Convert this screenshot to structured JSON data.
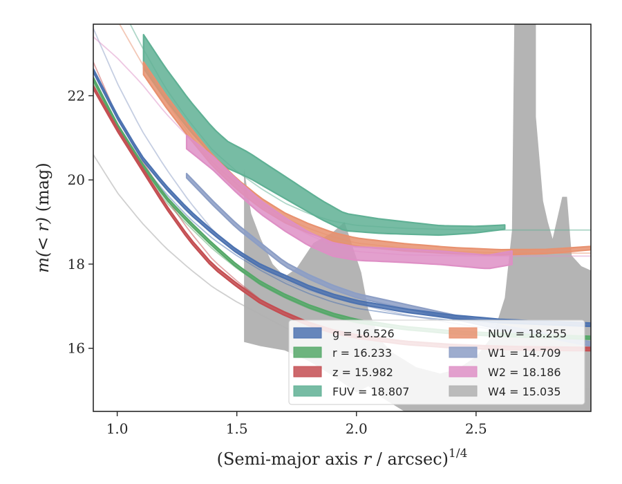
{
  "chart_data": {
    "type": "line",
    "title": "",
    "xlabel_main": "(Semi-major axis ",
    "xlabel_var": "r",
    "xlabel_rest": " / arcsec)",
    "xlabel_exp": "1/4",
    "ylabel_main": "m(< r)",
    "ylabel_unit": " (mag)",
    "xlim": [
      0.9,
      2.98
    ],
    "ylim": [
      23.7,
      14.5
    ],
    "y_inverted": true,
    "grid": false,
    "legend_position": "lower-right",
    "xticks": [
      1.0,
      1.5,
      2.0,
      2.5
    ],
    "xtick_labels": [
      "1.0",
      "1.5",
      "2.0",
      "2.5"
    ],
    "yticks": [
      16,
      18,
      20,
      22
    ],
    "ytick_labels": [
      "16",
      "18",
      "20",
      "22"
    ],
    "series": [
      {
        "key": "g",
        "legend_label": "g = 16.526",
        "color": "#4c72b0",
        "fit": [
          [
            0.9,
            22.45
          ],
          [
            1.0,
            21.3
          ],
          [
            1.1,
            20.4
          ],
          [
            1.2,
            19.7
          ],
          [
            1.3,
            19.1
          ],
          [
            1.4,
            18.6
          ],
          [
            1.5,
            18.2
          ],
          [
            1.6,
            17.85
          ],
          [
            1.7,
            17.55
          ],
          [
            1.8,
            17.3
          ],
          [
            1.9,
            17.1
          ],
          [
            2.0,
            16.95
          ],
          [
            2.2,
            16.78
          ],
          [
            2.4,
            16.66
          ],
          [
            2.6,
            16.6
          ],
          [
            2.8,
            16.56
          ],
          [
            2.98,
            16.54
          ]
        ],
        "profile": [
          [
            0.9,
            22.6
          ],
          [
            1.0,
            21.5
          ],
          [
            1.1,
            20.55
          ],
          [
            1.2,
            19.85
          ],
          [
            1.3,
            19.25
          ],
          [
            1.4,
            18.75
          ],
          [
            1.5,
            18.3
          ],
          [
            1.6,
            17.95
          ],
          [
            1.7,
            17.7
          ],
          [
            1.8,
            17.45
          ],
          [
            1.9,
            17.25
          ],
          [
            2.0,
            17.1
          ],
          [
            2.2,
            16.9
          ],
          [
            2.4,
            16.75
          ],
          [
            2.6,
            16.65
          ],
          [
            2.8,
            16.6
          ],
          [
            2.98,
            16.56
          ]
        ],
        "halfwidth": 0.04
      },
      {
        "key": "r",
        "legend_label": "r = 16.233",
        "color": "#55a868",
        "fit": [
          [
            0.9,
            22.3
          ],
          [
            1.0,
            21.2
          ],
          [
            1.1,
            20.3
          ],
          [
            1.2,
            19.5
          ],
          [
            1.3,
            18.9
          ],
          [
            1.4,
            18.35
          ],
          [
            1.5,
            17.9
          ],
          [
            1.6,
            17.5
          ],
          [
            1.7,
            17.2
          ],
          [
            1.8,
            16.95
          ],
          [
            1.9,
            16.75
          ],
          [
            2.0,
            16.6
          ],
          [
            2.2,
            16.45
          ],
          [
            2.4,
            16.35
          ],
          [
            2.6,
            16.3
          ],
          [
            2.8,
            16.26
          ],
          [
            2.98,
            16.25
          ]
        ],
        "profile": [
          [
            0.9,
            22.4
          ],
          [
            1.0,
            21.3
          ],
          [
            1.1,
            20.4
          ],
          [
            1.2,
            19.6
          ],
          [
            1.3,
            19.0
          ],
          [
            1.4,
            18.45
          ],
          [
            1.5,
            17.95
          ],
          [
            1.6,
            17.55
          ],
          [
            1.7,
            17.25
          ],
          [
            1.8,
            17.0
          ],
          [
            1.9,
            16.8
          ],
          [
            2.0,
            16.65
          ],
          [
            2.2,
            16.48
          ],
          [
            2.4,
            16.38
          ],
          [
            2.6,
            16.32
          ],
          [
            2.8,
            16.28
          ],
          [
            2.98,
            16.25
          ]
        ],
        "halfwidth": 0.035
      },
      {
        "key": "z",
        "legend_label": "z = 15.982",
        "color": "#c44e52",
        "fit": [
          [
            0.9,
            22.8
          ],
          [
            1.0,
            21.5
          ],
          [
            1.1,
            20.5
          ],
          [
            1.2,
            19.6
          ],
          [
            1.3,
            18.8
          ],
          [
            1.4,
            18.1
          ],
          [
            1.5,
            17.6
          ],
          [
            1.6,
            17.15
          ],
          [
            1.7,
            16.85
          ],
          [
            1.8,
            16.6
          ],
          [
            1.9,
            16.42
          ],
          [
            2.0,
            16.3
          ],
          [
            2.2,
            16.15
          ],
          [
            2.4,
            16.07
          ],
          [
            2.6,
            16.03
          ],
          [
            2.8,
            16.0
          ],
          [
            2.98,
            15.99
          ]
        ],
        "profile": [
          [
            0.9,
            22.2
          ],
          [
            1.0,
            21.2
          ],
          [
            1.1,
            20.3
          ],
          [
            1.2,
            19.4
          ],
          [
            1.3,
            18.6
          ],
          [
            1.4,
            17.95
          ],
          [
            1.5,
            17.5
          ],
          [
            1.6,
            17.1
          ],
          [
            1.7,
            16.82
          ],
          [
            1.8,
            16.58
          ],
          [
            1.9,
            16.4
          ],
          [
            2.0,
            16.28
          ],
          [
            2.2,
            16.13
          ],
          [
            2.4,
            16.05
          ],
          [
            2.6,
            16.01
          ],
          [
            2.8,
            15.99
          ],
          [
            2.98,
            15.98
          ]
        ],
        "halfwidth": 0.04
      },
      {
        "key": "FUV",
        "legend_label": "FUV = 18.807",
        "color": "#5fb094",
        "fit": [
          [
            0.9,
            25.5
          ],
          [
            1.0,
            24.3
          ],
          [
            1.1,
            23.2
          ],
          [
            1.2,
            22.2
          ],
          [
            1.3,
            21.4
          ],
          [
            1.4,
            20.7
          ],
          [
            1.5,
            20.2
          ],
          [
            1.6,
            19.8
          ],
          [
            1.7,
            19.45
          ],
          [
            1.8,
            19.2
          ],
          [
            1.9,
            19.02
          ],
          [
            2.0,
            18.92
          ],
          [
            2.2,
            18.85
          ],
          [
            2.4,
            18.82
          ],
          [
            2.6,
            18.81
          ],
          [
            2.8,
            18.81
          ],
          [
            2.98,
            18.81
          ]
        ],
        "profile": [
          [
            1.11,
            23.05
          ],
          [
            1.2,
            22.3
          ],
          [
            1.3,
            21.55
          ],
          [
            1.4,
            20.9
          ],
          [
            1.46,
            20.6
          ],
          [
            1.55,
            20.35
          ],
          [
            1.65,
            20.0
          ],
          [
            1.75,
            19.65
          ],
          [
            1.85,
            19.3
          ],
          [
            1.95,
            19.0
          ],
          [
            2.1,
            18.9
          ],
          [
            2.35,
            18.8
          ],
          [
            2.5,
            18.82
          ],
          [
            2.62,
            18.88
          ]
        ],
        "halfwidth_start": 0.4,
        "halfwidth_end": 0.05
      },
      {
        "key": "NUV",
        "legend_label": "NUV = 18.255",
        "color": "#e8916f",
        "fit": [
          [
            0.9,
            25.0
          ],
          [
            1.0,
            23.8
          ],
          [
            1.1,
            22.8
          ],
          [
            1.2,
            21.9
          ],
          [
            1.3,
            21.1
          ],
          [
            1.4,
            20.4
          ],
          [
            1.5,
            19.9
          ],
          [
            1.6,
            19.45
          ],
          [
            1.7,
            19.1
          ],
          [
            1.8,
            18.85
          ],
          [
            1.9,
            18.65
          ],
          [
            2.0,
            18.5
          ],
          [
            2.2,
            18.38
          ],
          [
            2.4,
            18.3
          ],
          [
            2.6,
            18.27
          ],
          [
            2.8,
            18.26
          ],
          [
            2.98,
            18.26
          ]
        ],
        "profile": [
          [
            1.11,
            22.65
          ],
          [
            1.2,
            21.9
          ],
          [
            1.3,
            21.15
          ],
          [
            1.4,
            20.45
          ],
          [
            1.5,
            19.9
          ],
          [
            1.6,
            19.45
          ],
          [
            1.7,
            19.1
          ],
          [
            1.8,
            18.85
          ],
          [
            1.9,
            18.65
          ],
          [
            2.0,
            18.52
          ],
          [
            2.2,
            18.4
          ],
          [
            2.4,
            18.32
          ],
          [
            2.6,
            18.28
          ],
          [
            2.8,
            18.3
          ],
          [
            2.98,
            18.38
          ]
        ],
        "halfwidth_start": 0.15,
        "halfwidth_end": 0.04
      },
      {
        "key": "W1",
        "legend_label": "W1 = 14.709",
        "color": "#8c9ec5",
        "fit": [
          [
            0.9,
            23.6
          ],
          [
            1.0,
            22.3
          ],
          [
            1.1,
            21.2
          ],
          [
            1.2,
            20.3
          ],
          [
            1.3,
            19.5
          ],
          [
            1.4,
            18.8
          ],
          [
            1.5,
            18.3
          ],
          [
            1.6,
            17.9
          ],
          [
            1.7,
            17.6
          ],
          [
            1.8,
            17.38
          ],
          [
            1.9,
            17.2
          ],
          [
            2.0,
            17.05
          ],
          [
            2.2,
            16.8
          ],
          [
            2.4,
            16.6
          ],
          [
            2.6,
            16.42
          ],
          [
            2.8,
            16.25
          ],
          [
            2.98,
            16.05
          ]
        ],
        "profile": [
          [
            1.29,
            20.1
          ],
          [
            1.4,
            19.45
          ],
          [
            1.5,
            18.9
          ],
          [
            1.6,
            18.45
          ],
          [
            1.7,
            18.0
          ],
          [
            1.8,
            17.7
          ],
          [
            1.9,
            17.45
          ],
          [
            2.0,
            17.25
          ],
          [
            2.2,
            17.0
          ],
          [
            2.4,
            16.75
          ],
          [
            2.6,
            16.5
          ],
          [
            2.8,
            16.3
          ],
          [
            2.98,
            16.1
          ]
        ],
        "halfwidth": 0.05
      },
      {
        "key": "W2",
        "legend_label": "W2 = 18.186",
        "color": "#de8fc5",
        "fit": [
          [
            0.9,
            23.4
          ],
          [
            1.0,
            22.9
          ],
          [
            1.1,
            22.3
          ],
          [
            1.2,
            21.6
          ],
          [
            1.3,
            21.0
          ],
          [
            1.4,
            20.4
          ],
          [
            1.5,
            19.9
          ],
          [
            1.6,
            19.4
          ],
          [
            1.7,
            19.0
          ],
          [
            1.8,
            18.7
          ],
          [
            1.9,
            18.45
          ],
          [
            2.0,
            18.3
          ],
          [
            2.2,
            18.22
          ],
          [
            2.4,
            18.2
          ],
          [
            2.6,
            18.19
          ],
          [
            2.8,
            18.19
          ],
          [
            2.98,
            18.19
          ]
        ],
        "profile": [
          [
            1.29,
            20.9
          ],
          [
            1.4,
            20.4
          ],
          [
            1.5,
            19.85
          ],
          [
            1.6,
            19.35
          ],
          [
            1.7,
            18.95
          ],
          [
            1.8,
            18.6
          ],
          [
            1.9,
            18.35
          ],
          [
            2.0,
            18.25
          ],
          [
            2.2,
            18.2
          ],
          [
            2.35,
            18.15
          ],
          [
            2.45,
            18.1
          ],
          [
            2.55,
            18.05
          ],
          [
            2.65,
            18.15
          ]
        ],
        "halfwidth": 0.16
      },
      {
        "key": "W4",
        "legend_label": "W4 = 15.035",
        "color": "#b0b0b0",
        "fit": [
          [
            0.9,
            20.6
          ],
          [
            1.0,
            19.7
          ],
          [
            1.1,
            19.0
          ],
          [
            1.2,
            18.4
          ],
          [
            1.3,
            17.9
          ],
          [
            1.4,
            17.45
          ],
          [
            1.5,
            17.1
          ],
          [
            1.6,
            16.8
          ],
          [
            1.7,
            16.5
          ],
          [
            1.8,
            16.2
          ],
          [
            1.9,
            15.95
          ],
          [
            2.0,
            15.75
          ],
          [
            2.1,
            15.5
          ],
          [
            2.2,
            15.3
          ],
          [
            2.3,
            15.1
          ],
          [
            2.4,
            15.05
          ],
          [
            2.6,
            15.04
          ],
          [
            2.8,
            15.035
          ],
          [
            2.98,
            15.035
          ]
        ],
        "band_upper": [
          [
            1.53,
            16.15
          ],
          [
            1.6,
            16.05
          ],
          [
            1.7,
            15.95
          ],
          [
            1.8,
            15.7
          ],
          [
            1.9,
            15.35
          ],
          [
            2.0,
            14.95
          ],
          [
            2.05,
            15.1
          ],
          [
            2.1,
            14.85
          ],
          [
            2.2,
            14.5
          ],
          [
            2.98,
            14.5
          ]
        ],
        "band_lower": [
          [
            1.53,
            20.25
          ],
          [
            1.56,
            19.2
          ],
          [
            1.6,
            18.6
          ],
          [
            1.65,
            18.0
          ],
          [
            1.7,
            17.7
          ],
          [
            1.75,
            17.9
          ],
          [
            1.82,
            18.5
          ],
          [
            1.9,
            18.75
          ],
          [
            1.95,
            19.0
          ],
          [
            2.02,
            17.8
          ],
          [
            2.05,
            16.9
          ],
          [
            2.1,
            16.2
          ],
          [
            2.15,
            15.9
          ],
          [
            2.25,
            15.55
          ],
          [
            2.35,
            15.4
          ],
          [
            2.42,
            15.5
          ],
          [
            2.5,
            15.8
          ],
          [
            2.57,
            16.3
          ],
          [
            2.62,
            17.2
          ],
          [
            2.65,
            18.8
          ],
          [
            2.66,
            23.8
          ],
          [
            2.75,
            23.8
          ],
          [
            2.75,
            21.5
          ],
          [
            2.78,
            19.5
          ],
          [
            2.8,
            19.0
          ],
          [
            2.82,
            18.6
          ],
          [
            2.86,
            19.6
          ],
          [
            2.88,
            19.6
          ],
          [
            2.9,
            18.2
          ],
          [
            2.94,
            17.95
          ],
          [
            2.98,
            17.85
          ]
        ]
      }
    ]
  }
}
